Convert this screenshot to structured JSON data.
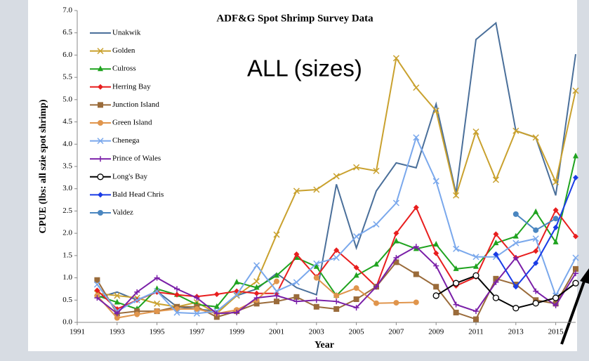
{
  "chart_data": {
    "type": "line",
    "title": "ADF&G Spot Shrimp Survey Data",
    "annotation": "ALL (sizes)",
    "x_label": "Year",
    "y_label": "CPUE (lbs: all szie spot shrimp)",
    "x": [
      1992,
      1993,
      1994,
      1995,
      1996,
      1997,
      1998,
      1999,
      2000,
      2001,
      2002,
      2003,
      2004,
      2005,
      2006,
      2007,
      2008,
      2009,
      2010,
      2011,
      2012,
      2013,
      2014,
      2015,
      2016
    ],
    "xlim": [
      1991,
      2016
    ],
    "xticks": [
      1991,
      1993,
      1995,
      1997,
      1999,
      2001,
      2003,
      2005,
      2007,
      2009,
      2011,
      2013,
      2015
    ],
    "ylim": [
      0,
      7
    ],
    "yticks": [
      {
        "value": 0,
        "label": "0.0"
      },
      {
        "value": 0.5,
        "label": "0.5"
      },
      {
        "value": 1,
        "label": "1.0"
      },
      {
        "value": 1.5,
        "label": "1.5"
      },
      {
        "value": 2,
        "label": "2.0"
      },
      {
        "value": 2.5,
        "label": "2.5"
      },
      {
        "value": 3,
        "label": "3.0"
      },
      {
        "value": 3.5,
        "label": "3.5"
      },
      {
        "value": 4,
        "label": "4.0"
      },
      {
        "value": 4.5,
        "label": "4.5"
      },
      {
        "value": 5,
        "label": "5.0"
      },
      {
        "value": 5.5,
        "label": "5.5"
      },
      {
        "value": 6,
        "label": "6.0"
      },
      {
        "value": 6.5,
        "label": "6.5"
      },
      {
        "value": 7,
        "label": "7.0"
      }
    ],
    "legend": "upper left",
    "series": [
      {
        "name": "Unakwik",
        "color": "#4a6f9a",
        "marker": "none",
        "values": [
          0.55,
          0.68,
          0.5,
          0.7,
          0.35,
          0.3,
          0.25,
          0.6,
          0.75,
          1.1,
          0.78,
          0.62,
          3.1,
          1.67,
          2.95,
          3.58,
          3.47,
          4.9,
          2.9,
          6.35,
          6.72,
          4.3,
          4.15,
          2.85,
          6.02
        ]
      },
      {
        "name": "Golden",
        "color": "#c9a12e",
        "marker": "x",
        "values": [
          0.65,
          0.6,
          0.55,
          0.42,
          0.35,
          0.45,
          0.2,
          0.6,
          0.92,
          1.97,
          2.95,
          2.98,
          3.28,
          3.48,
          3.4,
          5.93,
          5.27,
          4.75,
          2.85,
          4.28,
          3.2,
          4.3,
          4.15,
          3.15,
          5.2
        ]
      },
      {
        "name": "Culross",
        "color": "#1fa31f",
        "marker": "triangle",
        "values": [
          0.6,
          0.45,
          0.3,
          0.75,
          0.62,
          0.4,
          0.35,
          0.9,
          0.78,
          1.05,
          1.45,
          1.25,
          0.6,
          1.05,
          1.3,
          1.82,
          1.65,
          1.75,
          1.2,
          1.25,
          1.78,
          1.93,
          2.48,
          1.8,
          3.73
        ]
      },
      {
        "name": "Herring Bay",
        "color": "#e81e1e",
        "marker": "diamond",
        "values": [
          0.72,
          0.3,
          0.5,
          0.68,
          0.62,
          0.58,
          0.63,
          0.7,
          0.65,
          0.65,
          1.53,
          1.02,
          1.62,
          1.23,
          0.8,
          2.0,
          2.58,
          1.55,
          0.82,
          1.02,
          1.98,
          1.45,
          1.6,
          2.52,
          1.93
        ]
      },
      {
        "name": "Junction Island",
        "color": "#9a6b3a",
        "marker": "square",
        "values": [
          0.95,
          0.2,
          0.25,
          0.25,
          0.35,
          0.35,
          0.12,
          0.25,
          0.42,
          0.47,
          0.57,
          0.35,
          0.3,
          0.52,
          0.8,
          1.35,
          1.08,
          0.8,
          0.22,
          0.07,
          0.98,
          0.85,
          0.5,
          0.42,
          1.2
        ]
      },
      {
        "name": "Green Island",
        "color": "#e0954c",
        "marker": "circle",
        "values": [
          0.6,
          0.1,
          0.18,
          0.25,
          0.3,
          0.3,
          0.2,
          0.28,
          0.5,
          0.92,
          null,
          1.0,
          0.6,
          0.77,
          0.43,
          0.44,
          0.45,
          null,
          null,
          null,
          null,
          null,
          null,
          null,
          null
        ]
      },
      {
        "name": "Chenega",
        "color": "#7aa8ec",
        "marker": "x",
        "values": [
          0.85,
          0.25,
          0.5,
          0.7,
          0.22,
          0.2,
          0.25,
          0.62,
          1.28,
          0.7,
          0.9,
          1.32,
          1.45,
          1.93,
          2.2,
          2.68,
          4.15,
          3.17,
          1.65,
          1.47,
          1.47,
          1.78,
          1.88,
          0.6,
          1.45
        ]
      },
      {
        "name": "Prince of Wales",
        "color": "#7a1fa8",
        "marker": "plus",
        "values": [
          0.55,
          0.2,
          0.68,
          1.0,
          0.75,
          0.55,
          0.2,
          0.22,
          0.55,
          0.6,
          0.47,
          0.5,
          0.47,
          0.33,
          0.8,
          1.45,
          1.7,
          1.27,
          0.4,
          0.25,
          0.9,
          1.45,
          0.7,
          0.38,
          1.1
        ]
      },
      {
        "name": "Long's Bay",
        "color": "#000000",
        "marker": "open-circle",
        "values": [
          null,
          null,
          null,
          null,
          null,
          null,
          null,
          null,
          null,
          null,
          null,
          null,
          null,
          null,
          null,
          null,
          null,
          0.6,
          0.88,
          1.05,
          0.55,
          0.32,
          0.43,
          0.55,
          0.88
        ]
      },
      {
        "name": "Bald Head Chris",
        "color": "#1a3ce6",
        "marker": "diamond",
        "values": [
          null,
          null,
          null,
          null,
          null,
          null,
          null,
          null,
          null,
          null,
          null,
          null,
          null,
          null,
          null,
          null,
          null,
          null,
          null,
          null,
          1.53,
          0.8,
          1.33,
          2.13,
          3.25
        ]
      },
      {
        "name": "Valdez",
        "color": "#4a86c0",
        "marker": "circle",
        "values": [
          null,
          null,
          null,
          null,
          null,
          null,
          null,
          null,
          null,
          null,
          null,
          null,
          null,
          null,
          null,
          null,
          null,
          null,
          null,
          null,
          null,
          2.43,
          2.07,
          2.33,
          null
        ]
      }
    ]
  }
}
